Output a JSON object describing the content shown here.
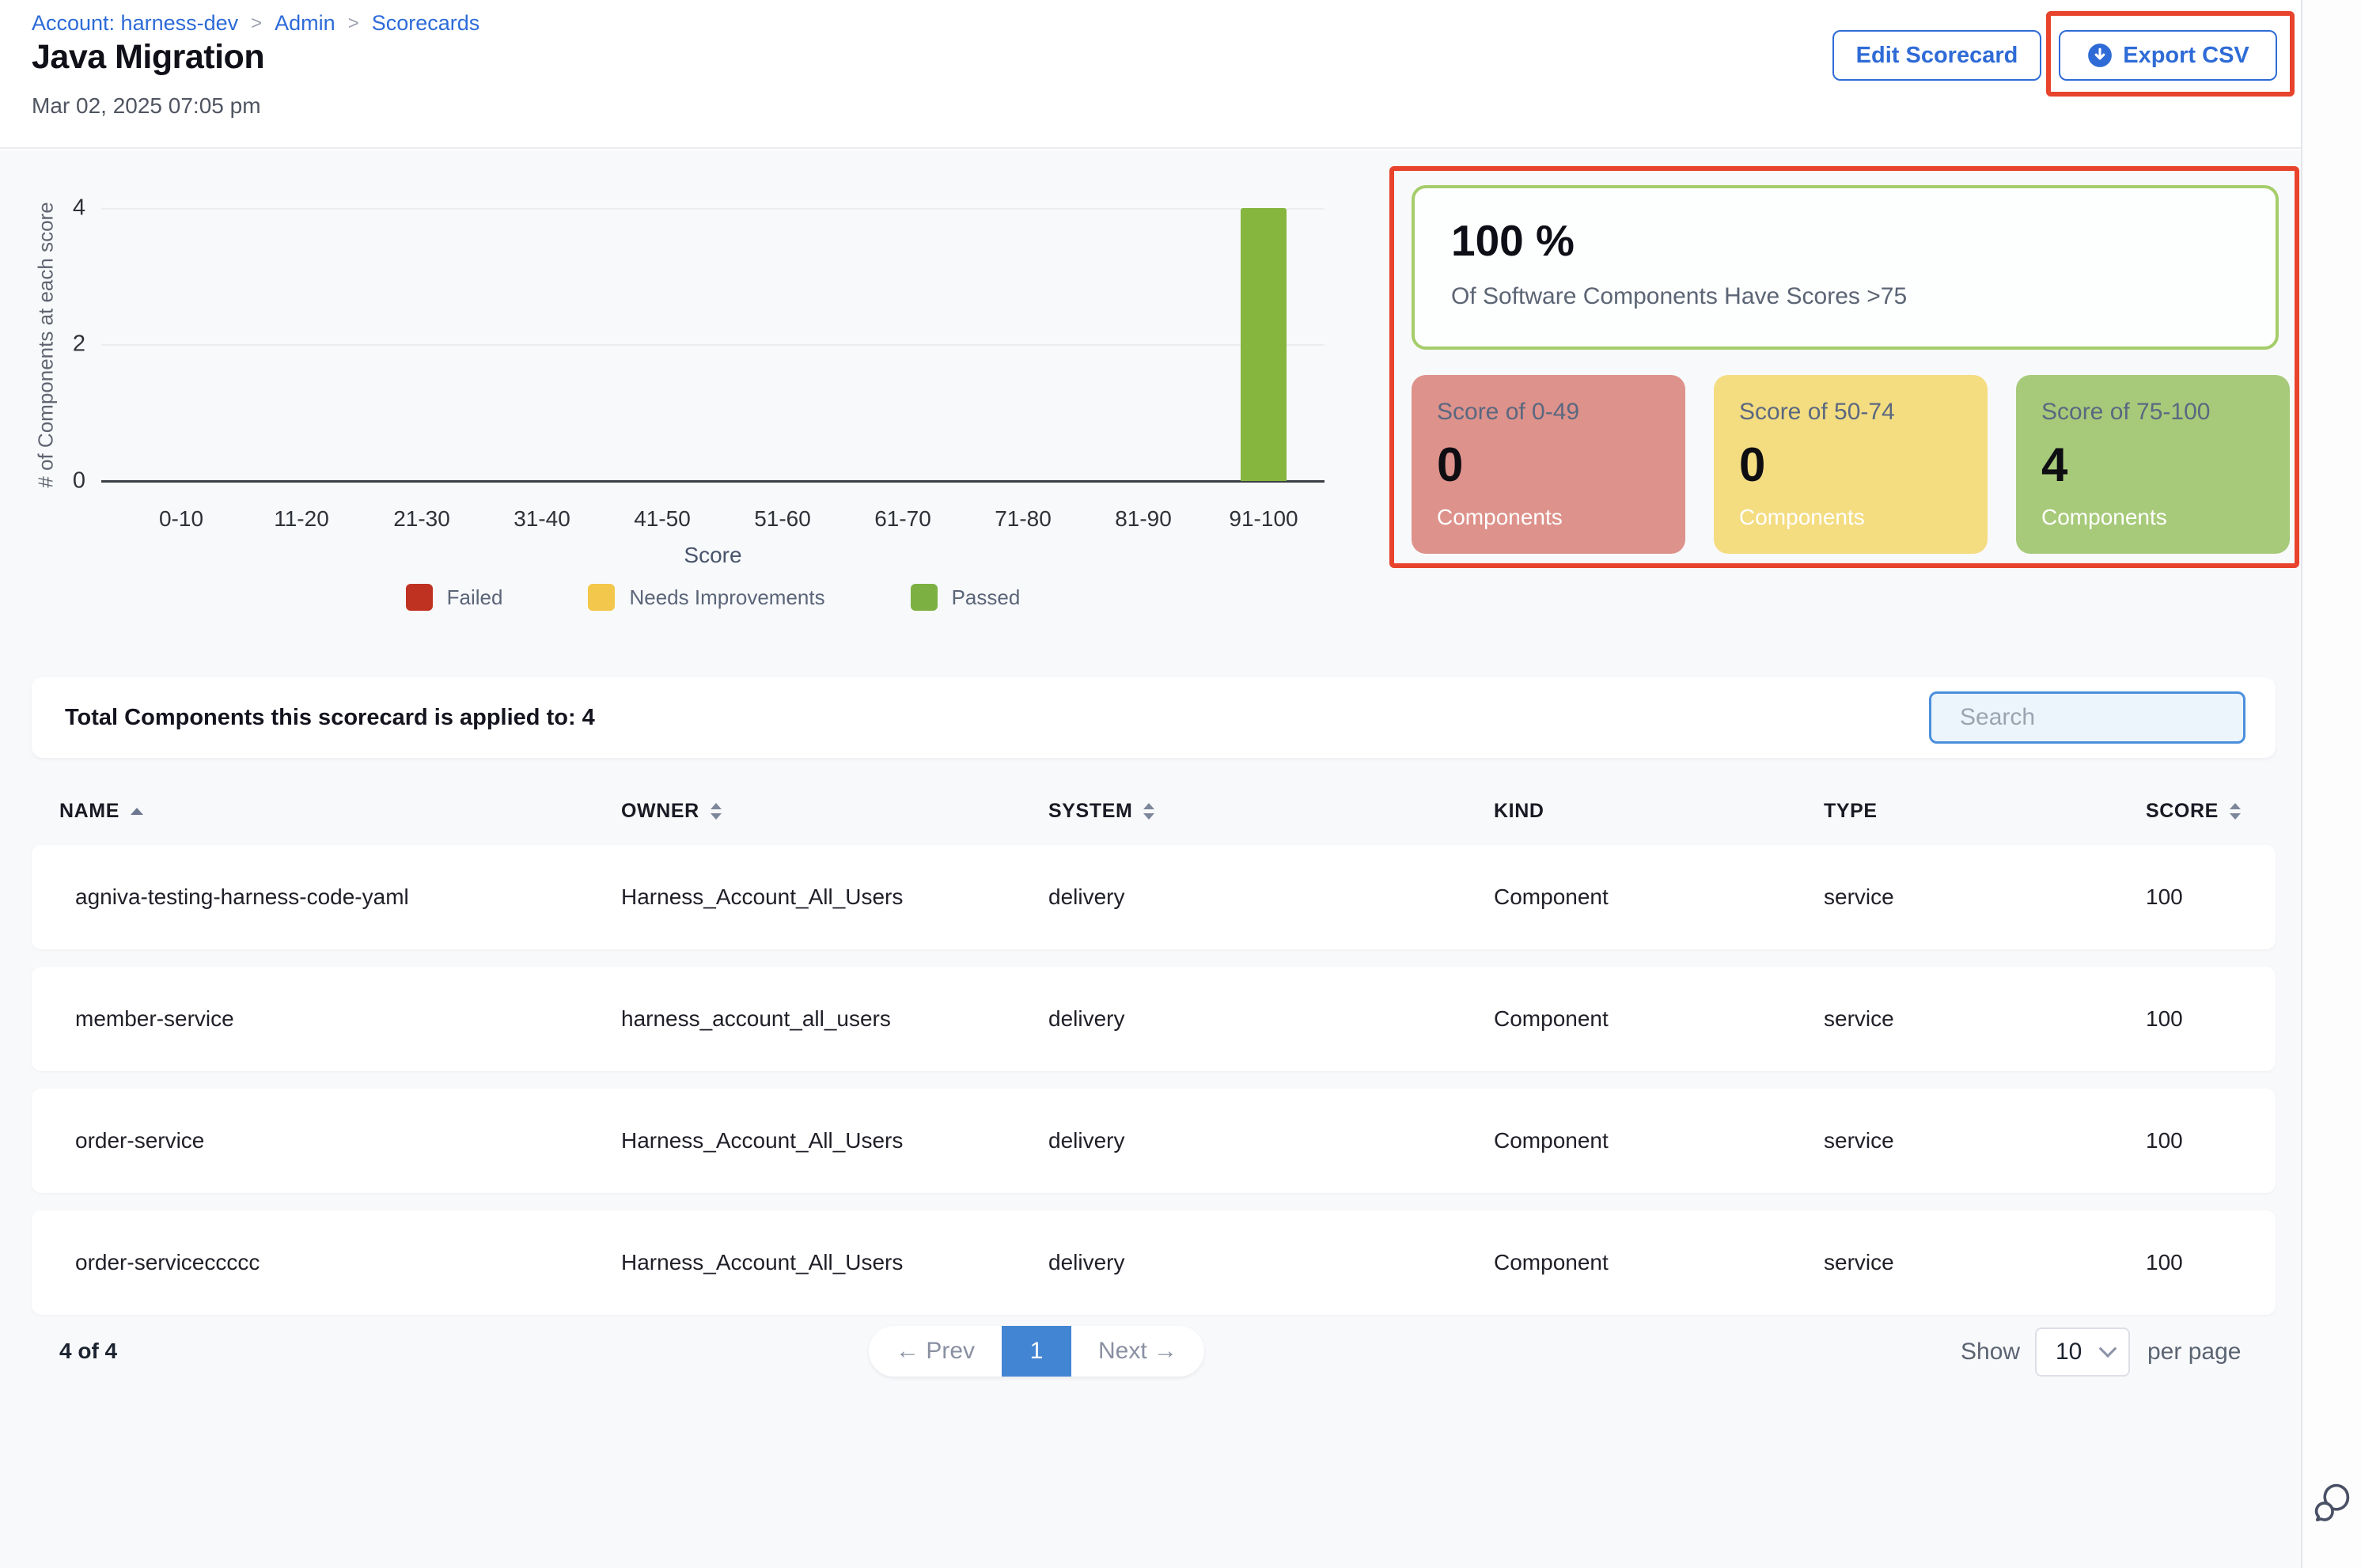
{
  "breadcrumb": {
    "separator": ">",
    "items": [
      {
        "label": "Account: harness-dev"
      },
      {
        "label": "Admin"
      },
      {
        "label": "Scorecards"
      }
    ]
  },
  "header": {
    "title": "Java Migration",
    "date": "Mar 02, 2025 07:05 pm",
    "edit_button": "Edit Scorecard",
    "export_button": "Export CSV"
  },
  "chart_data": {
    "type": "bar",
    "title": "",
    "categories": [
      "0-10",
      "11-20",
      "21-30",
      "31-40",
      "41-50",
      "51-60",
      "61-70",
      "71-80",
      "81-90",
      "91-100"
    ],
    "values": [
      0,
      0,
      0,
      0,
      0,
      0,
      0,
      0,
      0,
      4
    ],
    "yticks": [
      "4",
      "2",
      "0"
    ],
    "ylim": [
      0,
      4
    ],
    "ylabel": "# of Components at each score",
    "xlabel": "Score",
    "grid": "horizontal",
    "bar_color": "#86b63e",
    "legend_position": "bottom",
    "legend": [
      {
        "label": "Failed",
        "color": "#bf3222"
      },
      {
        "label": "Needs Improvements",
        "color": "#f3c74b"
      },
      {
        "label": "Passed",
        "color": "#7db042"
      }
    ]
  },
  "summary": {
    "percent": "100 %",
    "percent_caption": "Of Software Components Have Scores >75",
    "cards": [
      {
        "title": "Score of 0-49",
        "count": "0",
        "unit": "Components",
        "color": "#dd928b"
      },
      {
        "title": "Score of 50-74",
        "count": "0",
        "unit": "Components",
        "color": "#f4dc81"
      },
      {
        "title": "Score of 75-100",
        "count": "4",
        "unit": "Components",
        "color": "#a7ca7a"
      }
    ]
  },
  "table": {
    "total_label": "Total Components this scorecard is applied to: 4",
    "search_placeholder": "Search",
    "columns": [
      {
        "label": "NAME",
        "sort": "asc"
      },
      {
        "label": "OWNER",
        "sort": "both"
      },
      {
        "label": "SYSTEM",
        "sort": "both"
      },
      {
        "label": "KIND",
        "sort": "none"
      },
      {
        "label": "TYPE",
        "sort": "none"
      },
      {
        "label": "SCORE",
        "sort": "both"
      }
    ],
    "rows": [
      {
        "name": "agniva-testing-harness-code-yaml",
        "owner": "Harness_Account_All_Users",
        "system": "delivery",
        "kind": "Component",
        "type": "service",
        "score": "100"
      },
      {
        "name": "member-service",
        "owner": "harness_account_all_users",
        "system": "delivery",
        "kind": "Component",
        "type": "service",
        "score": "100"
      },
      {
        "name": "order-service",
        "owner": "Harness_Account_All_Users",
        "system": "delivery",
        "kind": "Component",
        "type": "service",
        "score": "100"
      },
      {
        "name": "order-serviceccccc",
        "owner": "Harness_Account_All_Users",
        "system": "delivery",
        "kind": "Component",
        "type": "service",
        "score": "100"
      }
    ]
  },
  "pagination": {
    "range": "4 of 4",
    "prev": "← Prev",
    "page": "1",
    "next": "Next →",
    "show": "Show",
    "per_page_value": "10",
    "per_page_suffix": "per page"
  },
  "colors": {
    "accent_blue": "#2e6bd6",
    "annotation_red": "#e8432c",
    "active_page_blue": "#4285d2",
    "card_green_border": "#a5cd6b"
  }
}
